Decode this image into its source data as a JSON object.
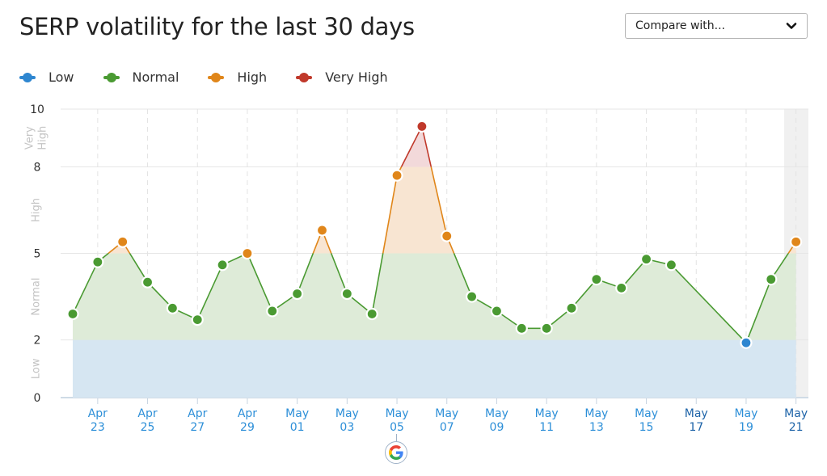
{
  "header": {
    "title": "SERP volatility for the last 30 days",
    "compare_select": {
      "label": "Compare with...",
      "icon": "chevron-down-icon"
    }
  },
  "legend": [
    {
      "label": "Low",
      "color": "#2e86d0"
    },
    {
      "label": "Normal",
      "color": "#4a9a32"
    },
    {
      "label": "High",
      "color": "#e0861a"
    },
    {
      "label": "Very High",
      "color": "#c0392b"
    }
  ],
  "colors": {
    "low": "#2e86d0",
    "normal": "#4a9a32",
    "high": "#e0861a",
    "very_high": "#c0392b",
    "low_fill": "#d6e6f2",
    "normal_fill": "#deebd8",
    "high_fill": "#f8e5d2",
    "very_high_fill": "#f2d9da",
    "axis_label": "#2d8fd8",
    "axis_label_weekend": "#1d63a8",
    "grid": "#e6e6e6",
    "highlight": "#f0f0f0"
  },
  "google_update_marker": {
    "date": "May 05",
    "icon": "google-icon"
  },
  "chart_data": {
    "type": "area",
    "title": "SERP volatility for the last 30 days",
    "xlabel": "",
    "ylabel": "",
    "ylim": [
      0,
      10
    ],
    "y_ticks": [
      0,
      2,
      5,
      8,
      10
    ],
    "y_bands": [
      {
        "label": "Low",
        "from": 0,
        "to": 2
      },
      {
        "label": "Normal",
        "from": 2,
        "to": 5
      },
      {
        "label": "High",
        "from": 5,
        "to": 8
      },
      {
        "label": "Very High",
        "from": 8,
        "to": 10
      }
    ],
    "x_tick_labels": [
      [
        "Apr",
        "23"
      ],
      [
        "Apr",
        "25"
      ],
      [
        "Apr",
        "27"
      ],
      [
        "Apr",
        "29"
      ],
      [
        "May",
        "01"
      ],
      [
        "May",
        "03"
      ],
      [
        "May",
        "05"
      ],
      [
        "May",
        "07"
      ],
      [
        "May",
        "09"
      ],
      [
        "May",
        "11"
      ],
      [
        "May",
        "13"
      ],
      [
        "May",
        "15"
      ],
      [
        "May",
        "17"
      ],
      [
        "May",
        "19"
      ],
      [
        "May",
        "21"
      ]
    ],
    "grid": true,
    "legend_position": "top-left",
    "series": [
      {
        "name": "SERP volatility",
        "points": [
          {
            "date": "Apr 22",
            "value": 2.9
          },
          {
            "date": "Apr 23",
            "value": 4.7
          },
          {
            "date": "Apr 24",
            "value": 5.4
          },
          {
            "date": "Apr 25",
            "value": 4.0
          },
          {
            "date": "Apr 26",
            "value": 3.1
          },
          {
            "date": "Apr 27",
            "value": 2.7
          },
          {
            "date": "Apr 28",
            "value": 4.6
          },
          {
            "date": "Apr 29",
            "value": 5.0
          },
          {
            "date": "Apr 30",
            "value": 3.0
          },
          {
            "date": "May 01",
            "value": 3.6
          },
          {
            "date": "May 02",
            "value": 5.8
          },
          {
            "date": "May 03",
            "value": 3.6
          },
          {
            "date": "May 04",
            "value": 2.9
          },
          {
            "date": "May 05",
            "value": 7.7
          },
          {
            "date": "May 06",
            "value": 9.4
          },
          {
            "date": "May 07",
            "value": 5.6
          },
          {
            "date": "May 08",
            "value": 3.5
          },
          {
            "date": "May 09",
            "value": 3.0
          },
          {
            "date": "May 10",
            "value": 2.4
          },
          {
            "date": "May 11",
            "value": 2.4
          },
          {
            "date": "May 12",
            "value": 3.1
          },
          {
            "date": "May 13",
            "value": 4.1
          },
          {
            "date": "May 14",
            "value": 3.8
          },
          {
            "date": "May 15",
            "value": 4.8
          },
          {
            "date": "May 16",
            "value": 4.6
          },
          {
            "date": "May 19",
            "value": 1.9
          },
          {
            "date": "May 20",
            "value": 4.1
          },
          {
            "date": "May 21",
            "value": 5.4
          }
        ]
      }
    ]
  }
}
